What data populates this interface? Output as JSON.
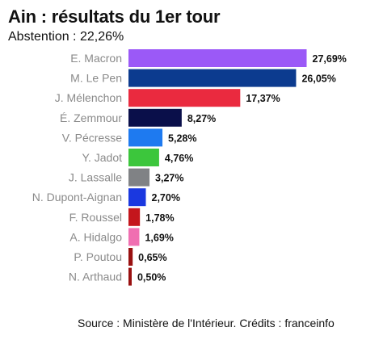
{
  "header": {
    "title": "Ain : résultats du 1er tour",
    "subtitle": "Abstention : 22,26%"
  },
  "footer": {
    "source": "Source : Ministère de l'Intérieur. Crédits : franceinfo"
  },
  "chart_data": {
    "type": "bar",
    "orientation": "horizontal",
    "title": "Ain : résultats du 1er tour",
    "subtitle": "Abstention : 22,26%",
    "categories": [
      "E. Macron",
      "M. Le Pen",
      "J. Mélenchon",
      "É. Zemmour",
      "V. Pécresse",
      "Y. Jadot",
      "J. Lassalle",
      "N. Dupont-Aignan",
      "F. Roussel",
      "A. Hidalgo",
      "P. Poutou",
      "N. Arthaud"
    ],
    "values": [
      27.69,
      26.05,
      17.37,
      8.27,
      5.28,
      4.76,
      3.27,
      2.7,
      1.78,
      1.69,
      0.65,
      0.5
    ],
    "value_labels": [
      "27,69%",
      "26,05%",
      "17,37%",
      "8,27%",
      "5,28%",
      "4,76%",
      "3,27%",
      "2,70%",
      "1,78%",
      "1,69%",
      "0,65%",
      "0,50%"
    ],
    "colors": [
      "#9b59f7",
      "#0c3b8f",
      "#ea2a3f",
      "#0a0f4a",
      "#1e7af0",
      "#3cc63c",
      "#808285",
      "#1a38e0",
      "#c4161c",
      "#f06fb1",
      "#991010",
      "#991010"
    ],
    "xlim": [
      0,
      27.69
    ],
    "grid": false,
    "legend": "none"
  }
}
